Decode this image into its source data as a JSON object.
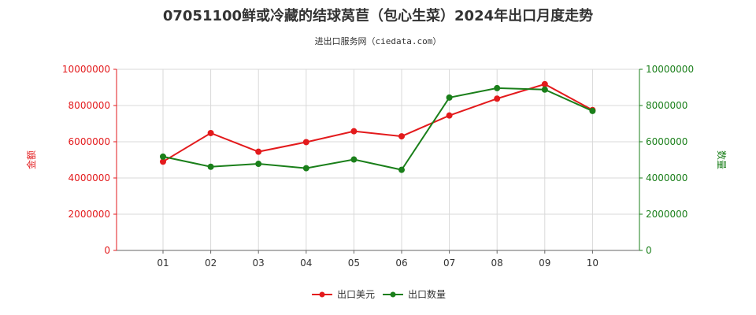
{
  "page": {
    "title": "07051100鲜或冷藏的结球莴苣（包心生菜）2024年出口月度走势",
    "subtitle": "进出口服务网（ciedata.com）"
  },
  "chart_data": {
    "type": "line",
    "categories": [
      "01",
      "02",
      "03",
      "04",
      "05",
      "06",
      "07",
      "08",
      "09",
      "10"
    ],
    "series": [
      {
        "name": "出口美元",
        "axis": "left",
        "color": "#e31a1c",
        "values": [
          4900000,
          6480000,
          5450000,
          5980000,
          6580000,
          6300000,
          7450000,
          8380000,
          9180000,
          7750000
        ]
      },
      {
        "name": "出口数量",
        "axis": "right",
        "color": "#1a7f1a",
        "values": [
          5180000,
          4620000,
          4780000,
          4540000,
          5020000,
          4450000,
          8440000,
          8960000,
          8880000,
          7700000
        ]
      }
    ],
    "ylabel_left": "金额",
    "ylabel_right": "数量",
    "ylim_left": [
      0,
      10000000
    ],
    "ylim_right": [
      0,
      10000000
    ],
    "yticks_left": [
      "0",
      "2000000",
      "4000000",
      "6000000",
      "8000000",
      "10000000"
    ],
    "yticks_right": [
      "0",
      "2000000",
      "4000000",
      "6000000",
      "8000000",
      "10000000"
    ],
    "left_axis_color": "#e31a1c",
    "right_axis_color": "#1a7f1a",
    "grid": true,
    "legend_position": "bottom-center"
  }
}
